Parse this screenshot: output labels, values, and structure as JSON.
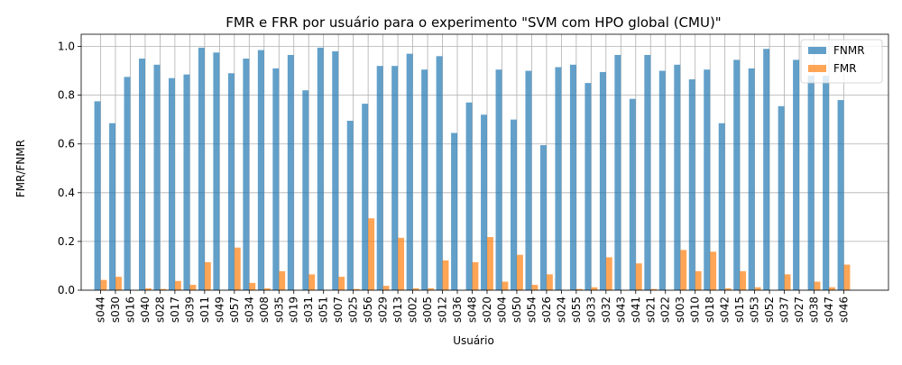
{
  "chart_data": {
    "type": "bar",
    "title": "FMR e FRR por usuário para o experimento \"SVM com HPO global (CMU)\"",
    "xlabel": "Usuário",
    "ylabel": "FMR/FNMR",
    "ylim": [
      0,
      1.05
    ],
    "yticks": [
      "0.0",
      "0.2",
      "0.4",
      "0.6",
      "0.8",
      "1.0"
    ],
    "grid": true,
    "legend_position": "top-right",
    "categories": [
      "s044",
      "s030",
      "s016",
      "s040",
      "s028",
      "s017",
      "s039",
      "s011",
      "s049",
      "s057",
      "s034",
      "s008",
      "s035",
      "s019",
      "s031",
      "s051",
      "s007",
      "s025",
      "s056",
      "s029",
      "s013",
      "s002",
      "s005",
      "s012",
      "s036",
      "s048",
      "s020",
      "s004",
      "s050",
      "s054",
      "s026",
      "s024",
      "s055",
      "s033",
      "s032",
      "s043",
      "s041",
      "s021",
      "s022",
      "s003",
      "s010",
      "s018",
      "s042",
      "s015",
      "s053",
      "s052",
      "s037",
      "s027",
      "s038",
      "s047",
      "s046"
    ],
    "series": [
      {
        "name": "FNMR",
        "color": "#1f77b4",
        "values": [
          0.775,
          0.685,
          0.875,
          0.95,
          0.925,
          0.87,
          0.885,
          0.995,
          0.975,
          0.89,
          0.95,
          0.985,
          0.91,
          0.965,
          0.82,
          0.995,
          0.98,
          0.695,
          0.765,
          0.92,
          0.92,
          0.97,
          0.905,
          0.96,
          0.645,
          0.77,
          0.72,
          0.905,
          0.7,
          0.9,
          0.595,
          0.915,
          0.925,
          0.85,
          0.895,
          0.965,
          0.785,
          0.965,
          0.9,
          0.925,
          0.865,
          0.905,
          0.685,
          0.945,
          0.91,
          0.99,
          0.755,
          0.945,
          0.88,
          0.88,
          0.78
        ]
      },
      {
        "name": "FMR",
        "color": "#ff7f0e",
        "values": [
          0.042,
          0.055,
          0.0,
          0.008,
          0.005,
          0.038,
          0.022,
          0.115,
          0.0,
          0.175,
          0.03,
          0.008,
          0.078,
          0.0,
          0.065,
          0.0,
          0.055,
          0.005,
          0.295,
          0.018,
          0.215,
          0.008,
          0.008,
          0.122,
          0.0,
          0.115,
          0.218,
          0.035,
          0.145,
          0.022,
          0.065,
          0.0,
          0.005,
          0.012,
          0.135,
          0.0,
          0.11,
          0.005,
          0.0,
          0.165,
          0.078,
          0.158,
          0.008,
          0.078,
          0.012,
          0.0,
          0.065,
          0.0,
          0.035,
          0.012,
          0.105
        ]
      }
    ]
  }
}
